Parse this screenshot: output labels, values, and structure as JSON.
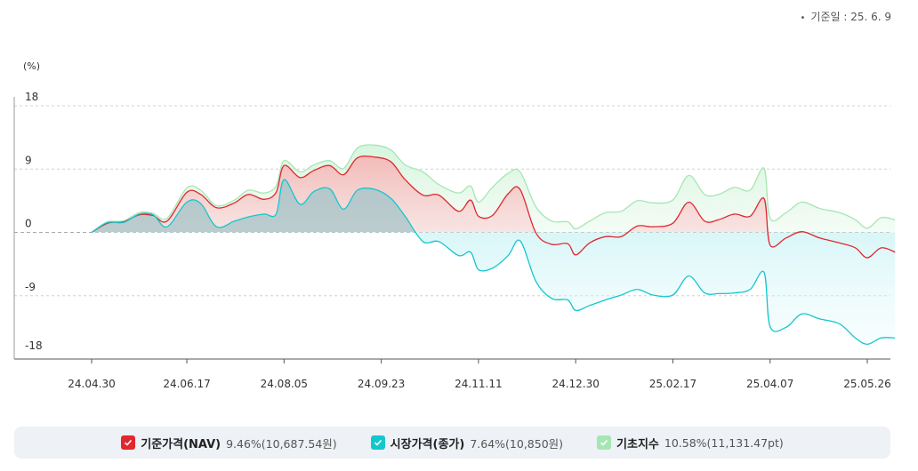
{
  "header": {
    "ref_date": "기준일 : 25. 6. 9"
  },
  "legend": [
    {
      "name": "기준가격(NAV)",
      "value": "9.46%(10,687.54원)",
      "color": "#e0282e",
      "icon": "check-icon"
    },
    {
      "name": "시장가격(종가)",
      "value": "7.64%(10,850원)",
      "color": "#13c7cf",
      "icon": "check-icon"
    },
    {
      "name": "기초지수",
      "value": "10.58%(11,131.47pt)",
      "color": "#a6e6b5",
      "icon": "check-icon"
    }
  ],
  "chart_data": {
    "type": "area",
    "ylabel": "(%)",
    "ylim": [
      -18,
      18
    ],
    "yticks": [
      18,
      9,
      0,
      -9,
      -18
    ],
    "xlim": [
      "2024-04-30",
      "2025-06-09"
    ],
    "xticks": [
      "24.04.30",
      "24.06.17",
      "24.08.05",
      "24.09.23",
      "24.11.11",
      "24.12.30",
      "25.02.17",
      "25.04.07",
      "25.05.26"
    ],
    "grid": true,
    "series": [
      {
        "name": "기초지수",
        "color": "#a6e6b5",
        "points": [
          [
            "2024-04-30",
            0
          ],
          [
            "2024-05-08",
            1.5
          ],
          [
            "2024-05-16",
            1.6
          ],
          [
            "2024-05-24",
            2.8
          ],
          [
            "2024-05-31",
            2.7
          ],
          [
            "2024-06-07",
            2.0
          ],
          [
            "2024-06-17",
            6.3
          ],
          [
            "2024-06-24",
            6.0
          ],
          [
            "2024-07-02",
            3.8
          ],
          [
            "2024-07-11",
            4.6
          ],
          [
            "2024-07-18",
            6.0
          ],
          [
            "2024-07-26",
            5.6
          ],
          [
            "2024-08-01",
            6.6
          ],
          [
            "2024-08-05",
            10.2
          ],
          [
            "2024-08-13",
            8.6
          ],
          [
            "2024-08-20",
            9.6
          ],
          [
            "2024-08-28",
            10.2
          ],
          [
            "2024-09-04",
            9.1
          ],
          [
            "2024-09-11",
            12.0
          ],
          [
            "2024-09-20",
            12.4
          ],
          [
            "2024-09-28",
            11.7
          ],
          [
            "2024-10-05",
            9.6
          ],
          [
            "2024-10-14",
            8.6
          ],
          [
            "2024-10-22",
            6.8
          ],
          [
            "2024-11-01",
            5.6
          ],
          [
            "2024-11-07",
            6.6
          ],
          [
            "2024-11-11",
            4.3
          ],
          [
            "2024-11-18",
            6.4
          ],
          [
            "2024-11-26",
            8.4
          ],
          [
            "2024-12-02",
            8.6
          ],
          [
            "2024-12-10",
            3.6
          ],
          [
            "2024-12-18",
            1.6
          ],
          [
            "2024-12-26",
            1.5
          ],
          [
            "2024-12-30",
            0.5
          ],
          [
            "2025-01-06",
            1.6
          ],
          [
            "2025-01-14",
            2.8
          ],
          [
            "2025-01-22",
            3.0
          ],
          [
            "2025-01-30",
            4.5
          ],
          [
            "2025-02-07",
            4.2
          ],
          [
            "2025-02-17",
            4.6
          ],
          [
            "2025-02-25",
            8.1
          ],
          [
            "2025-03-05",
            5.4
          ],
          [
            "2025-03-12",
            5.4
          ],
          [
            "2025-03-20",
            6.4
          ],
          [
            "2025-03-28",
            6.0
          ],
          [
            "2025-04-04",
            9.1
          ],
          [
            "2025-04-07",
            2.0
          ],
          [
            "2025-04-15",
            2.8
          ],
          [
            "2025-04-23",
            4.3
          ],
          [
            "2025-05-02",
            3.4
          ],
          [
            "2025-05-12",
            2.8
          ],
          [
            "2025-05-20",
            1.8
          ],
          [
            "2025-05-26",
            0.6
          ],
          [
            "2025-06-02",
            2.1
          ],
          [
            "2025-06-09",
            1.8
          ]
        ]
      },
      {
        "name": "기준가격(NAV)",
        "color": "#e0282e",
        "points": [
          [
            "2024-04-30",
            0
          ],
          [
            "2024-05-08",
            1.3
          ],
          [
            "2024-05-16",
            1.5
          ],
          [
            "2024-05-24",
            2.5
          ],
          [
            "2024-05-31",
            2.4
          ],
          [
            "2024-06-07",
            1.6
          ],
          [
            "2024-06-17",
            5.7
          ],
          [
            "2024-06-24",
            5.4
          ],
          [
            "2024-07-02",
            3.5
          ],
          [
            "2024-07-11",
            4.2
          ],
          [
            "2024-07-18",
            5.4
          ],
          [
            "2024-07-26",
            4.7
          ],
          [
            "2024-08-01",
            5.7
          ],
          [
            "2024-08-05",
            9.5
          ],
          [
            "2024-08-13",
            7.8
          ],
          [
            "2024-08-20",
            8.8
          ],
          [
            "2024-08-28",
            9.5
          ],
          [
            "2024-09-04",
            8.2
          ],
          [
            "2024-09-11",
            10.6
          ],
          [
            "2024-09-20",
            10.7
          ],
          [
            "2024-09-28",
            10.0
          ],
          [
            "2024-10-05",
            7.5
          ],
          [
            "2024-10-14",
            5.3
          ],
          [
            "2024-10-22",
            5.3
          ],
          [
            "2024-11-01",
            3.0
          ],
          [
            "2024-11-07",
            4.6
          ],
          [
            "2024-11-11",
            2.3
          ],
          [
            "2024-11-18",
            2.4
          ],
          [
            "2024-11-26",
            5.5
          ],
          [
            "2024-12-02",
            6.1
          ],
          [
            "2024-12-10",
            -0.1
          ],
          [
            "2024-12-18",
            -1.7
          ],
          [
            "2024-12-26",
            -1.6
          ],
          [
            "2024-12-30",
            -3.2
          ],
          [
            "2025-01-06",
            -1.5
          ],
          [
            "2025-01-14",
            -0.6
          ],
          [
            "2025-01-22",
            -0.6
          ],
          [
            "2025-01-30",
            0.9
          ],
          [
            "2025-02-07",
            0.8
          ],
          [
            "2025-02-17",
            1.3
          ],
          [
            "2025-02-25",
            4.3
          ],
          [
            "2025-03-05",
            1.6
          ],
          [
            "2025-03-12",
            1.8
          ],
          [
            "2025-03-20",
            2.6
          ],
          [
            "2025-03-28",
            2.3
          ],
          [
            "2025-04-04",
            4.8
          ],
          [
            "2025-04-07",
            -1.8
          ],
          [
            "2025-04-15",
            -0.8
          ],
          [
            "2025-04-23",
            0.1
          ],
          [
            "2025-05-02",
            -0.8
          ],
          [
            "2025-05-12",
            -1.5
          ],
          [
            "2025-05-20",
            -2.2
          ],
          [
            "2025-05-26",
            -3.6
          ],
          [
            "2025-06-02",
            -2.2
          ],
          [
            "2025-06-09",
            -2.8
          ]
        ]
      },
      {
        "name": "시장가격(종가)",
        "color": "#13c7cf",
        "points": [
          [
            "2024-04-30",
            0
          ],
          [
            "2024-05-08",
            1.4
          ],
          [
            "2024-05-16",
            1.4
          ],
          [
            "2024-05-24",
            2.6
          ],
          [
            "2024-05-31",
            2.5
          ],
          [
            "2024-06-07",
            0.8
          ],
          [
            "2024-06-17",
            4.3
          ],
          [
            "2024-06-24",
            4.1
          ],
          [
            "2024-07-02",
            0.8
          ],
          [
            "2024-07-11",
            1.6
          ],
          [
            "2024-07-18",
            2.2
          ],
          [
            "2024-07-26",
            2.6
          ],
          [
            "2024-08-01",
            2.6
          ],
          [
            "2024-08-05",
            7.5
          ],
          [
            "2024-08-13",
            4.0
          ],
          [
            "2024-08-20",
            5.8
          ],
          [
            "2024-08-28",
            6.2
          ],
          [
            "2024-09-04",
            3.3
          ],
          [
            "2024-09-11",
            6.0
          ],
          [
            "2024-09-20",
            6.1
          ],
          [
            "2024-09-28",
            4.8
          ],
          [
            "2024-10-05",
            2.3
          ],
          [
            "2024-10-14",
            -1.3
          ],
          [
            "2024-10-22",
            -1.3
          ],
          [
            "2024-11-01",
            -3.3
          ],
          [
            "2024-11-07",
            -2.8
          ],
          [
            "2024-11-11",
            -5.3
          ],
          [
            "2024-11-18",
            -5.1
          ],
          [
            "2024-11-26",
            -3.3
          ],
          [
            "2024-12-02",
            -1.2
          ],
          [
            "2024-12-10",
            -7.0
          ],
          [
            "2024-12-18",
            -9.4
          ],
          [
            "2024-12-26",
            -9.6
          ],
          [
            "2024-12-30",
            -11.1
          ],
          [
            "2025-01-06",
            -10.4
          ],
          [
            "2025-01-14",
            -9.6
          ],
          [
            "2025-01-22",
            -8.9
          ],
          [
            "2025-01-30",
            -8.1
          ],
          [
            "2025-02-07",
            -8.9
          ],
          [
            "2025-02-17",
            -8.9
          ],
          [
            "2025-02-25",
            -6.2
          ],
          [
            "2025-03-05",
            -8.6
          ],
          [
            "2025-03-12",
            -8.7
          ],
          [
            "2025-03-20",
            -8.6
          ],
          [
            "2025-03-28",
            -8.1
          ],
          [
            "2025-04-04",
            -5.7
          ],
          [
            "2025-04-07",
            -13.4
          ],
          [
            "2025-04-15",
            -13.5
          ],
          [
            "2025-04-23",
            -11.6
          ],
          [
            "2025-05-02",
            -12.3
          ],
          [
            "2025-05-12",
            -13.0
          ],
          [
            "2025-05-20",
            -15.0
          ],
          [
            "2025-05-26",
            -15.9
          ],
          [
            "2025-06-02",
            -15.0
          ],
          [
            "2025-06-09",
            -15.0
          ]
        ]
      }
    ]
  }
}
